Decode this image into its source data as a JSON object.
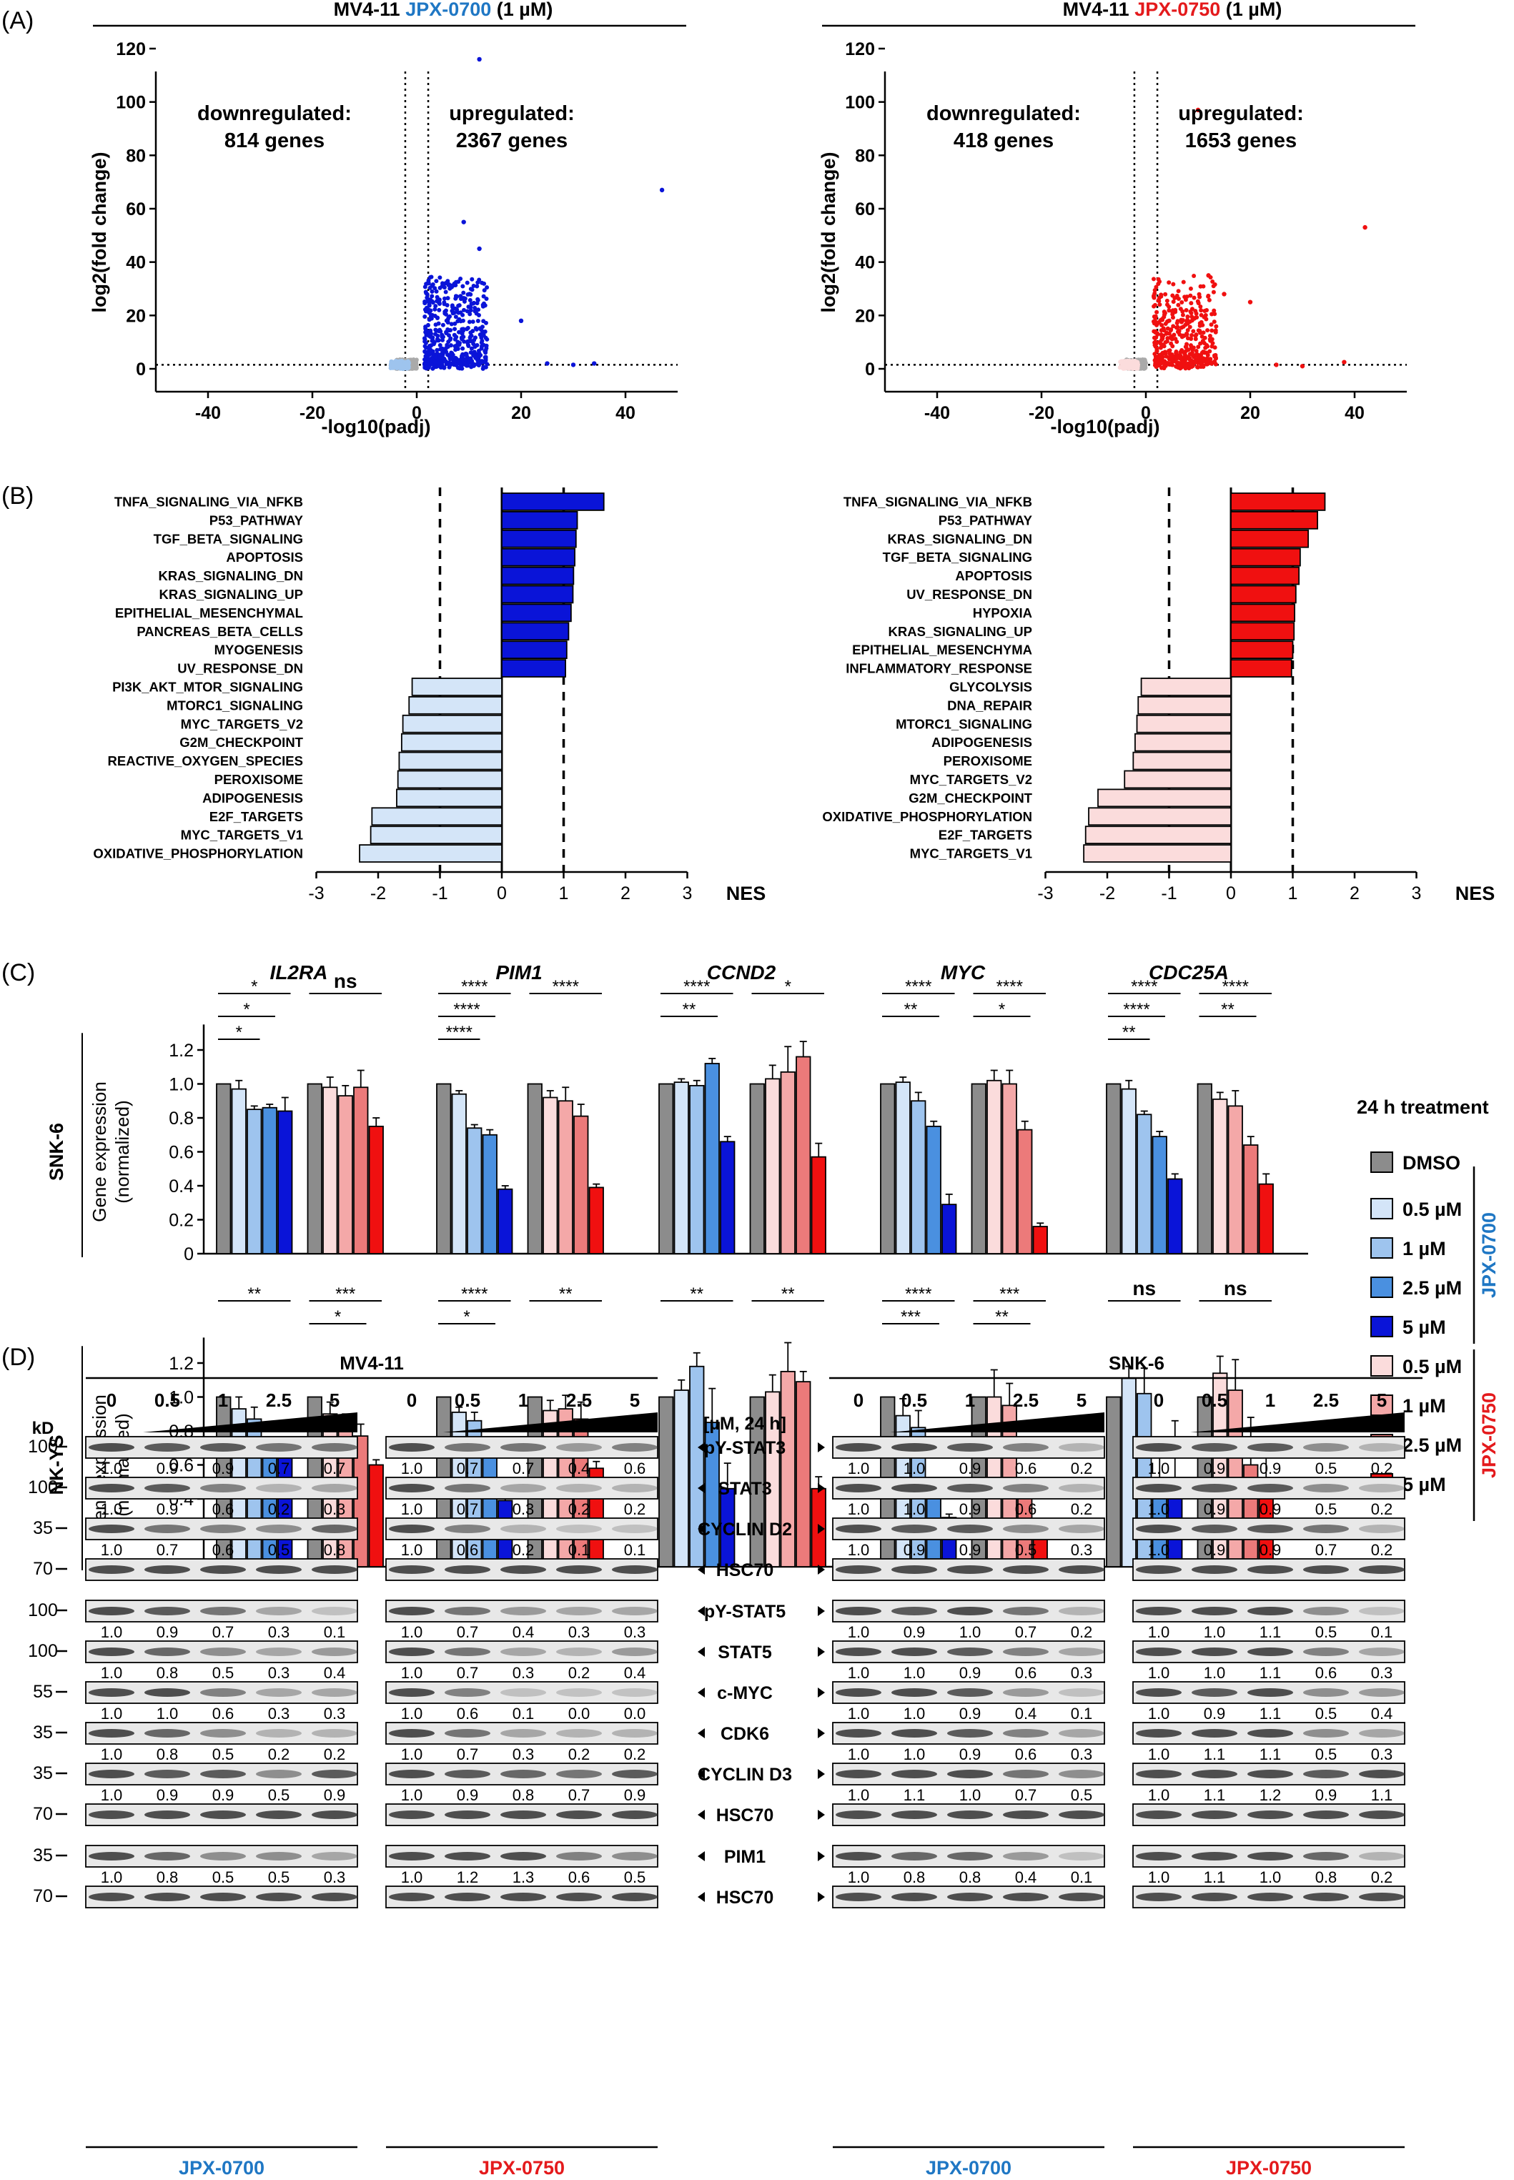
{
  "panels": {
    "A": "(A)",
    "B": "(B)",
    "C": "(C)",
    "D": "(D)"
  },
  "colors": {
    "jpx0700": "#1f77c4",
    "jpx0750": "#e41a1c",
    "blue_dark": "#0a14d8",
    "blue_mid": "#4a90e0",
    "blue_light": "#9ec4ee",
    "blue_pale": "#d4e5f8",
    "red_dark": "#f01010",
    "red_mid": "#ec7a7a",
    "red_light": "#f4a8a8",
    "red_pale": "#fbdcdc",
    "dmso": "#8c8c8c"
  },
  "volcano": [
    {
      "title_prefix": "MV4-11 ",
      "drug": "JPX-0700",
      "title_suffix": " (1 µM)",
      "down_label": "downregulated:",
      "down_count": "814 genes",
      "up_label": "upregulated:",
      "up_count": "2367 genes",
      "ylabel": "log2(fold change)",
      "xlabel": "-log10(padj)",
      "xticks": [
        "-40",
        "-20",
        "0",
        "20",
        "40"
      ],
      "yticks": [
        "0",
        "20",
        "40",
        "60",
        "80",
        "100",
        "120"
      ],
      "xlim": [
        -50,
        50
      ],
      "ylim": [
        0,
        120
      ]
    },
    {
      "title_prefix": "MV4-11 ",
      "drug": "JPX-0750",
      "title_suffix": " (1 µM)",
      "down_label": "downregulated:",
      "down_count": "418 genes",
      "up_label": "upregulated:",
      "up_count": "1653 genes",
      "ylabel": "log2(fold change)",
      "xlabel": "-log10(padj)",
      "xticks": [
        "-40",
        "-20",
        "0",
        "20",
        "40"
      ],
      "yticks": [
        "0",
        "20",
        "40",
        "60",
        "80",
        "100",
        "120"
      ],
      "xlim": [
        -50,
        50
      ],
      "ylim": [
        0,
        120
      ]
    }
  ],
  "chart_data": [
    {
      "type": "bar",
      "orientation": "horizontal",
      "xlabel": "NES",
      "xlim": [
        -3,
        3
      ],
      "xticks": [
        "-3",
        "-2",
        "-1",
        "0",
        "1",
        "2",
        "3"
      ],
      "categories": [
        "TNFA_SIGNALING_VIA_NFKB",
        "P53_PATHWAY",
        "TGF_BETA_SIGNALING",
        "APOPTOSIS",
        "KRAS_SIGNALING_DN",
        "KRAS_SIGNALING_UP",
        "EPITHELIAL_MESENCHYMAL",
        "PANCREAS_BETA_CELLS",
        "MYOGENESIS",
        "UV_RESPONSE_DN",
        "PI3K_AKT_MTOR_SIGNALING",
        "MTORC1_SIGNALING",
        "MYC_TARGETS_V2",
        "G2M_CHECKPOINT",
        "REACTIVE_OXYGEN_SPECIES",
        "PEROXISOME",
        "ADIPOGENESIS",
        "E2F_TARGETS",
        "MYC_TARGETS_V1",
        "OXIDATIVE_PHOSPHORYLATION"
      ],
      "values": [
        1.65,
        1.22,
        1.2,
        1.18,
        1.16,
        1.15,
        1.12,
        1.08,
        1.05,
        1.03,
        -1.45,
        -1.5,
        -1.6,
        -1.62,
        -1.66,
        -1.68,
        -1.7,
        -2.1,
        -2.12,
        -2.3
      ]
    },
    {
      "type": "bar",
      "orientation": "horizontal",
      "xlabel": "NES",
      "xlim": [
        -3,
        3
      ],
      "xticks": [
        "-3",
        "-2",
        "-1",
        "0",
        "1",
        "2",
        "3"
      ],
      "categories": [
        "TNFA_SIGNALING_VIA_NFKB",
        "P53_PATHWAY",
        "KRAS_SIGNALING_DN",
        "TGF_BETA_SIGNALING",
        "APOPTOSIS",
        "UV_RESPONSE_DN",
        "HYPOXIA",
        "KRAS_SIGNALING_UP",
        "EPITHELIAL_MESENCHYMA",
        "INFLAMMATORY_RESPONSE",
        "GLYCOLYSIS",
        "DNA_REPAIR",
        "MTORC1_SIGNALING",
        "ADIPOGENESIS",
        "PEROXISOME",
        "MYC_TARGETS_V2",
        "G2M_CHECKPOINT",
        "OXIDATIVE_PHOSPHORYLATION",
        "E2F_TARGETS",
        "MYC_TARGETS_V1"
      ],
      "values": [
        1.52,
        1.4,
        1.25,
        1.12,
        1.1,
        1.05,
        1.03,
        1.02,
        1.0,
        0.98,
        -1.45,
        -1.5,
        -1.52,
        -1.55,
        -1.58,
        -1.72,
        -2.15,
        -2.3,
        -2.35,
        -2.38
      ]
    },
    {
      "type": "bar",
      "group": "SNK-6",
      "ylabel": "Gene expression (normalized)",
      "ylim": [
        0,
        1.2
      ],
      "yticks": [
        "0",
        "0.2",
        "0.4",
        "0.6",
        "0.8",
        "1.0",
        "1.2"
      ],
      "genes": [
        "IL2RA",
        "PIM1",
        "CCND2",
        "MYC",
        "CDC25A"
      ],
      "series": [
        [
          1.0,
          0.97,
          0.85,
          0.86,
          0.84,
          1.0,
          0.98,
          0.93,
          0.98,
          0.75
        ],
        [
          1.0,
          0.94,
          0.74,
          0.7,
          0.38,
          1.0,
          0.92,
          0.9,
          0.81,
          0.39
        ],
        [
          1.0,
          1.01,
          0.99,
          1.12,
          0.66,
          1.0,
          1.03,
          1.07,
          1.16,
          0.57
        ],
        [
          1.0,
          1.01,
          0.9,
          0.75,
          0.29,
          1.0,
          1.02,
          1.0,
          0.73,
          0.16
        ],
        [
          1.0,
          0.97,
          0.82,
          0.69,
          0.44,
          1.0,
          0.91,
          0.87,
          0.64,
          0.41
        ]
      ],
      "errors": [
        [
          0,
          0.05,
          0.02,
          0.02,
          0.08,
          0,
          0.06,
          0.06,
          0.1,
          0.05
        ],
        [
          0,
          0.02,
          0.02,
          0.03,
          0.02,
          0,
          0.04,
          0.08,
          0.07,
          0.02
        ],
        [
          0,
          0.02,
          0.03,
          0.03,
          0.03,
          0,
          0.08,
          0.15,
          0.09,
          0.08
        ],
        [
          0,
          0.03,
          0.05,
          0.03,
          0.06,
          0,
          0.06,
          0.08,
          0.05,
          0.02
        ],
        [
          0,
          0.05,
          0.02,
          0.03,
          0.03,
          0,
          0.04,
          0.09,
          0.05,
          0.06
        ]
      ],
      "significance": [
        [
          [
            "*",
            "*",
            "*"
          ],
          [
            "ns"
          ]
        ],
        [
          [
            "****",
            "****",
            "****"
          ],
          [
            "****"
          ]
        ],
        [
          [
            "****",
            "**"
          ],
          [
            "*"
          ]
        ],
        [
          [
            "****",
            "**"
          ],
          [
            "****",
            "*"
          ]
        ],
        [
          [
            "****",
            "****",
            "**"
          ],
          [
            "****",
            "**"
          ]
        ]
      ]
    },
    {
      "type": "bar",
      "group": "NK-YS",
      "ylabel": "Gene expression (normalized)",
      "ylim": [
        0,
        1.2
      ],
      "yticks": [
        "0",
        "0.2",
        "0.4",
        "0.6",
        "0.8",
        "1.0",
        "1.2"
      ],
      "genes": [
        "IL2RA",
        "PIM1",
        "CCND2",
        "MYC",
        "CDC25A"
      ],
      "series": [
        [
          1.0,
          0.93,
          0.87,
          0.75,
          0.64,
          1.0,
          0.9,
          0.84,
          0.77,
          0.6
        ],
        [
          1.0,
          0.91,
          0.86,
          0.74,
          0.39,
          1.0,
          0.92,
          0.93,
          0.87,
          0.58
        ],
        [
          1.0,
          1.04,
          1.18,
          0.85,
          0.46,
          1.0,
          1.03,
          1.15,
          1.09,
          0.46
        ],
        [
          1.0,
          0.89,
          0.82,
          0.4,
          0.29,
          1.0,
          1.0,
          0.95,
          0.44,
          0.23
        ],
        [
          1.0,
          1.11,
          1.02,
          0.49,
          0.51,
          1.0,
          1.14,
          1.04,
          0.6,
          0.5
        ]
      ],
      "errors": [
        [
          0,
          0.07,
          0.07,
          0.01,
          0.12,
          0,
          0.07,
          0.06,
          0.07,
          0.03
        ],
        [
          0,
          0.03,
          0.05,
          0.02,
          0.1,
          0,
          0.06,
          0.08,
          0.1,
          0.04
        ],
        [
          0,
          0.06,
          0.08,
          0.2,
          0.15,
          0,
          0.1,
          0.17,
          0.06,
          0.07
        ],
        [
          0,
          0.1,
          0.1,
          0.07,
          0.02,
          0,
          0.16,
          0.13,
          0.04,
          0.03
        ],
        [
          0,
          0.07,
          0.15,
          0.25,
          0.35,
          0,
          0.1,
          0.18,
          0.28,
          0.18
        ]
      ],
      "significance": [
        [
          [
            "**"
          ],
          [
            "***",
            "*"
          ]
        ],
        [
          [
            "****",
            "*"
          ],
          [
            "**"
          ]
        ],
        [
          [
            "**"
          ],
          [
            "**"
          ]
        ],
        [
          [
            "****",
            "***"
          ],
          [
            "***",
            "**"
          ]
        ],
        [
          [
            "ns"
          ],
          [
            "ns"
          ]
        ]
      ]
    }
  ],
  "legend": {
    "title": "24 h treatment",
    "items": [
      "DMSO",
      "0.5 µM",
      "1 µM",
      "2.5 µM",
      "5 µM",
      "0.5 µM",
      "1 µM",
      "2.5 µM",
      "5 µM"
    ],
    "brace_jpx0700": "JPX-0700",
    "brace_jpx0750": "JPX-0750",
    "row_labels": [
      "SNK-6",
      "NK-YS"
    ]
  },
  "western": {
    "cell_lines": [
      "MV4-11",
      "SNK-6"
    ],
    "kd_label": "kD",
    "doses": [
      "0",
      "0.5",
      "1",
      "2.5",
      "5"
    ],
    "unit_label": "[µM, 24 h]",
    "drug_labels": [
      "JPX-0700",
      "JPX-0750",
      "JPX-0700",
      "JPX-0750"
    ],
    "rows": [
      {
        "kd": "100",
        "protein": "pY-STAT3",
        "q": [
          [
            "1.0",
            "0.9",
            "0.9",
            "0.7",
            "0.7"
          ],
          [
            "1.0",
            "0.7",
            "0.7",
            "0.4",
            "0.6"
          ],
          [
            "1.0",
            "1.0",
            "0.9",
            "0.6",
            "0.2"
          ],
          [
            "1.0",
            "0.9",
            "0.9",
            "0.5",
            "0.2"
          ]
        ]
      },
      {
        "kd": "100",
        "protein": "STAT3",
        "q": [
          [
            "1.0",
            "0.9",
            "0.6",
            "0.2",
            "0.3"
          ],
          [
            "1.0",
            "0.7",
            "0.3",
            "0.2",
            "0.2"
          ],
          [
            "1.0",
            "1.0",
            "0.9",
            "0.6",
            "0.2"
          ],
          [
            "1.0",
            "0.9",
            "0.9",
            "0.5",
            "0.2"
          ]
        ]
      },
      {
        "kd": "35",
        "protein": "CYCLIN D2",
        "q": [
          [
            "1.0",
            "0.7",
            "0.6",
            "0.5",
            "0.8"
          ],
          [
            "1.0",
            "0.6",
            "0.2",
            "0.1",
            "0.1"
          ],
          [
            "1.0",
            "0.9",
            "0.9",
            "0.5",
            "0.3"
          ],
          [
            "1.0",
            "0.9",
            "0.9",
            "0.7",
            "0.2"
          ]
        ]
      },
      {
        "kd": "70",
        "protein": "HSC70",
        "q": null
      },
      {
        "kd": "100",
        "protein": "pY-STAT5",
        "q": [
          [
            "1.0",
            "0.9",
            "0.7",
            "0.3",
            "0.1"
          ],
          [
            "1.0",
            "0.7",
            "0.4",
            "0.3",
            "0.3"
          ],
          [
            "1.0",
            "0.9",
            "1.0",
            "0.7",
            "0.2"
          ],
          [
            "1.0",
            "1.0",
            "1.1",
            "0.5",
            "0.1"
          ]
        ]
      },
      {
        "kd": "100",
        "protein": "STAT5",
        "q": [
          [
            "1.0",
            "0.8",
            "0.5",
            "0.3",
            "0.4"
          ],
          [
            "1.0",
            "0.7",
            "0.3",
            "0.2",
            "0.4"
          ],
          [
            "1.0",
            "1.0",
            "0.9",
            "0.6",
            "0.3"
          ],
          [
            "1.0",
            "1.0",
            "1.1",
            "0.6",
            "0.3"
          ]
        ]
      },
      {
        "kd": "55",
        "protein": "c-MYC",
        "q": [
          [
            "1.0",
            "1.0",
            "0.6",
            "0.3",
            "0.3"
          ],
          [
            "1.0",
            "0.6",
            "0.1",
            "0.0",
            "0.0"
          ],
          [
            "1.0",
            "1.0",
            "0.9",
            "0.4",
            "0.1"
          ],
          [
            "1.0",
            "0.9",
            "1.1",
            "0.5",
            "0.4"
          ]
        ]
      },
      {
        "kd": "35",
        "protein": "CDK6",
        "q": [
          [
            "1.0",
            "0.8",
            "0.5",
            "0.2",
            "0.2"
          ],
          [
            "1.0",
            "0.7",
            "0.3",
            "0.2",
            "0.2"
          ],
          [
            "1.0",
            "1.0",
            "0.9",
            "0.6",
            "0.3"
          ],
          [
            "1.0",
            "1.1",
            "1.1",
            "0.5",
            "0.3"
          ]
        ]
      },
      {
        "kd": "35",
        "protein": "CYCLIN D3",
        "q": [
          [
            "1.0",
            "0.9",
            "0.9",
            "0.5",
            "0.9"
          ],
          [
            "1.0",
            "0.9",
            "0.8",
            "0.7",
            "0.9"
          ],
          [
            "1.0",
            "1.1",
            "1.0",
            "0.7",
            "0.5"
          ],
          [
            "1.0",
            "1.1",
            "1.2",
            "0.9",
            "1.1"
          ]
        ]
      },
      {
        "kd": "70",
        "protein": "HSC70",
        "q": null
      },
      {
        "kd": "35",
        "protein": "PIM1",
        "q": [
          [
            "1.0",
            "0.8",
            "0.5",
            "0.5",
            "0.3"
          ],
          [
            "1.0",
            "1.2",
            "1.3",
            "0.6",
            "0.5"
          ],
          [
            "1.0",
            "0.8",
            "0.8",
            "0.4",
            "0.1"
          ],
          [
            "1.0",
            "1.1",
            "1.0",
            "0.8",
            "0.2"
          ]
        ]
      },
      {
        "kd": "70",
        "protein": "HSC70",
        "q": null
      }
    ]
  }
}
